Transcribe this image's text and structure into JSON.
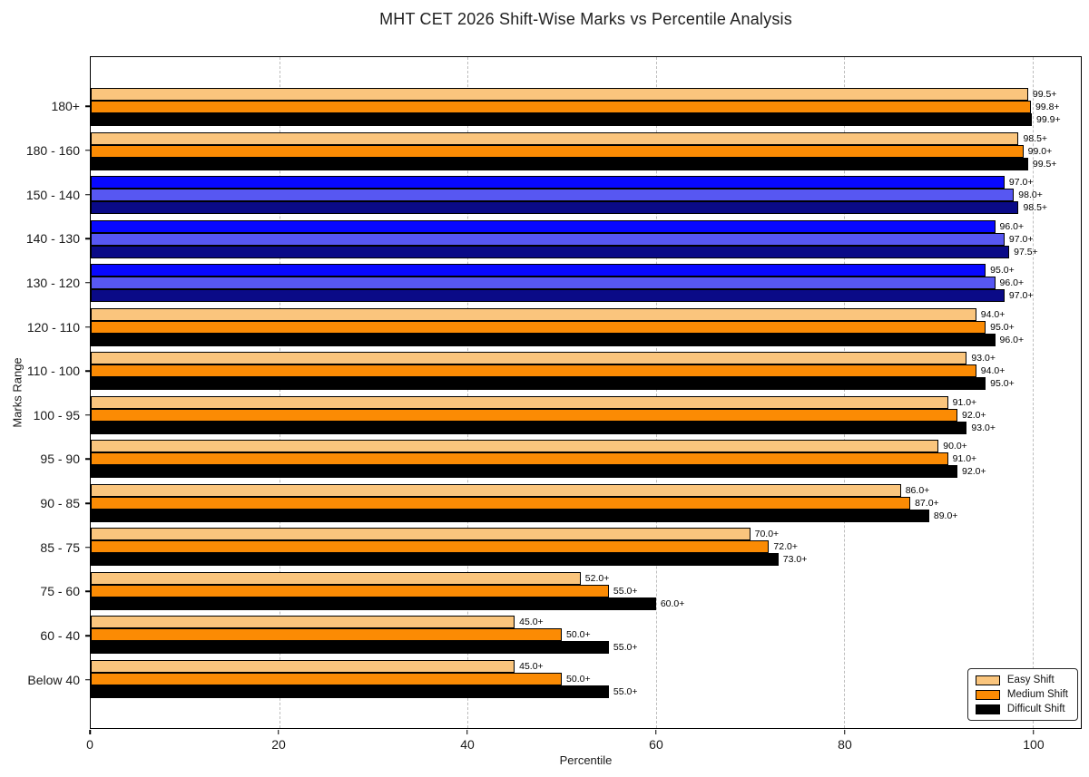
{
  "chart_data": {
    "type": "bar",
    "orientation": "horizontal",
    "title": "MHT CET 2026 Shift-Wise Marks vs Percentile Analysis",
    "xlabel": "Percentile",
    "ylabel": "Marks Range",
    "xlim": [
      0,
      105.1
    ],
    "x_ticks": [
      0,
      20,
      40,
      60,
      80,
      100
    ],
    "grid": "vertical-dashed",
    "legend_position": "lower-right",
    "bar_edge_color": "#000000",
    "categories": [
      "180+",
      "180 - 160",
      "150 - 140",
      "140 - 130",
      "130 - 120",
      "120 - 110",
      "110 - 100",
      "100 - 95",
      "95 - 90",
      "90 - 85",
      "85 - 75",
      "75 - 60",
      "60 - 40",
      "Below 40"
    ],
    "highlighted_category_indices": [
      2,
      3,
      4
    ],
    "series": [
      {
        "name": "Easy Shift",
        "color": "#FAC57D",
        "highlight_color": "#0808FF",
        "values": [
          99.5,
          98.5,
          97.0,
          96.0,
          95.0,
          94.0,
          93.0,
          91.0,
          90.0,
          86.0,
          70.0,
          52.0,
          45.0,
          45.0
        ],
        "labels": [
          "99.5+",
          "98.5+",
          "97.0+",
          "96.0+",
          "95.0+",
          "94.0+",
          "93.0+",
          "91.0+",
          "90.0+",
          "86.0+",
          "70.0+",
          "52.0+",
          "45.0+",
          "45.0+"
        ]
      },
      {
        "name": "Medium Shift",
        "color": "#FB8B04",
        "highlight_color": "#5757F2",
        "values": [
          99.8,
          99.0,
          98.0,
          97.0,
          96.0,
          95.0,
          94.0,
          92.0,
          91.0,
          87.0,
          72.0,
          55.0,
          50.0,
          50.0
        ],
        "labels": [
          "99.8+",
          "99.0+",
          "98.0+",
          "97.0+",
          "96.0+",
          "95.0+",
          "94.0+",
          "92.0+",
          "91.0+",
          "87.0+",
          "72.0+",
          "55.0+",
          "50.0+",
          "50.0+"
        ]
      },
      {
        "name": "Difficult Shift",
        "color": "#000000",
        "highlight_color": "#0A0A87",
        "values": [
          99.9,
          99.5,
          98.5,
          97.5,
          97.0,
          96.0,
          95.0,
          93.0,
          92.0,
          89.0,
          73.0,
          60.0,
          55.0,
          55.0
        ],
        "labels": [
          "99.9+",
          "99.5+",
          "98.5+",
          "97.5+",
          "97.0+",
          "96.0+",
          "95.0+",
          "93.0+",
          "92.0+",
          "89.0+",
          "73.0+",
          "60.0+",
          "55.0+",
          "55.0+"
        ]
      }
    ]
  }
}
